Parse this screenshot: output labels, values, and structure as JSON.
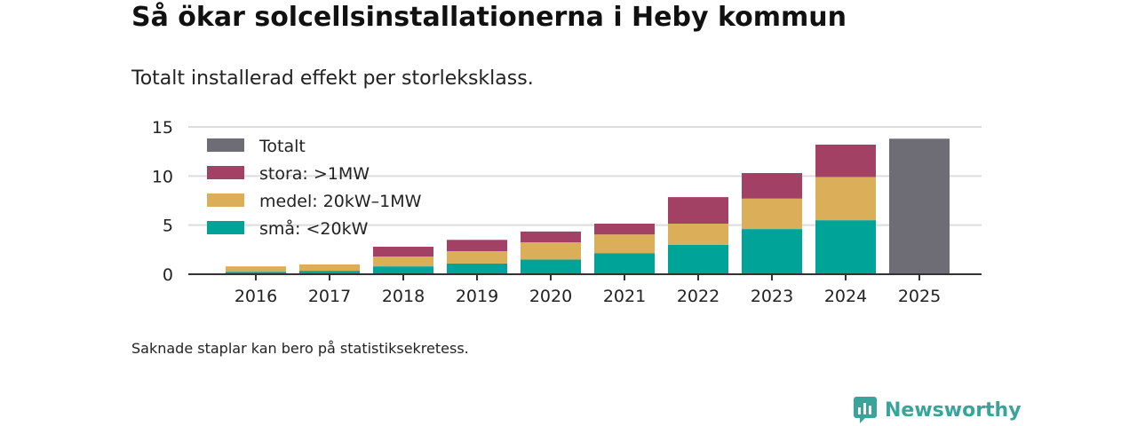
{
  "title": "Så ökar solcellsinstallationerna i Heby kommun",
  "subtitle": "Totalt installerad effekt per storleksklass.",
  "note": "Saknade staplar kan bero på statistiksekretess.",
  "brand": "Newsworthy",
  "chart_data": {
    "type": "bar",
    "stacked": true,
    "categories": [
      "2016",
      "2017",
      "2018",
      "2019",
      "2020",
      "2021",
      "2022",
      "2023",
      "2024",
      "2025"
    ],
    "ylim": [
      0,
      15
    ],
    "yticks": [
      0,
      5,
      10,
      15
    ],
    "grid": true,
    "legend_position": "top-left",
    "series": [
      {
        "name": "små: <20kW",
        "color": "#00a398",
        "values": [
          0.25,
          0.35,
          0.8,
          1.1,
          1.5,
          2.15,
          3.0,
          4.6,
          5.5,
          null
        ]
      },
      {
        "name": "medel: 20kW–1MW",
        "color": "#dbae5a",
        "values": [
          0.55,
          0.65,
          1.0,
          1.25,
          1.75,
          1.9,
          2.15,
          3.1,
          4.4,
          null
        ]
      },
      {
        "name": "stora: >1MW",
        "color": "#a34165",
        "values": [
          0,
          0,
          1.0,
          1.15,
          1.1,
          1.1,
          2.7,
          2.6,
          3.3,
          null
        ]
      },
      {
        "name": "Totalt",
        "color": "#6e6c74",
        "values": [
          null,
          null,
          null,
          null,
          null,
          null,
          null,
          null,
          null,
          13.8
        ]
      }
    ],
    "legend_order": [
      "Totalt",
      "stora: >1MW",
      "medel: 20kW–1MW",
      "små: <20kW"
    ]
  }
}
